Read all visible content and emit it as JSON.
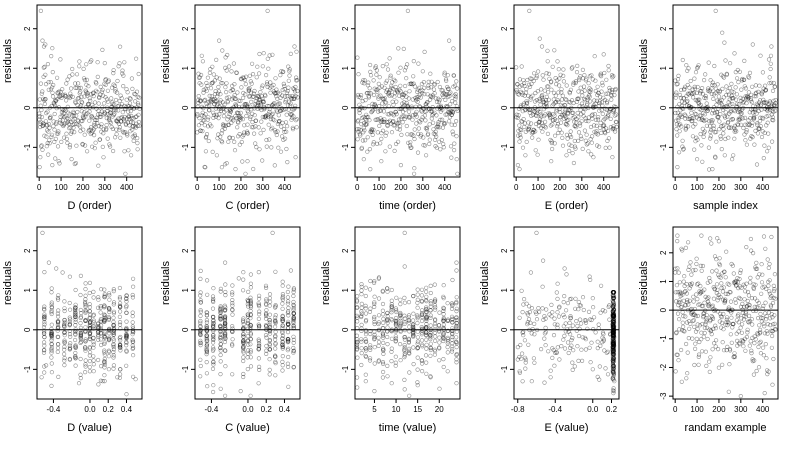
{
  "figure": {
    "background": "#ffffff",
    "point_color": "#000000",
    "point_opacity": 0.45,
    "ylabel": "residuals"
  },
  "chart_data": [
    {
      "id": "d-order",
      "type": "scatter",
      "xlabel": "D (order)",
      "xlim": [
        -10,
        470
      ],
      "ylim": [
        -1.75,
        2.6
      ],
      "xticks": [
        0,
        100,
        200,
        300,
        400
      ],
      "xticklabels": [
        "0",
        "100",
        "200",
        "300",
        "400"
      ],
      "yticks": [
        -1,
        0,
        1,
        2
      ],
      "yticklabels": [
        "-1",
        "0",
        "1",
        "2"
      ],
      "hline": 0,
      "gen": "order",
      "seed": 11,
      "n": 460,
      "points": [
        [
          8,
          2.45
        ],
        [
          15,
          1.7
        ],
        [
          22,
          1.55
        ],
        [
          28,
          1.6
        ],
        [
          5,
          -1.25
        ],
        [
          2,
          -1.5
        ],
        [
          60,
          -1.45
        ],
        [
          140,
          -1.0
        ],
        [
          215,
          1.1
        ],
        [
          238,
          1.2
        ],
        [
          340,
          0.95
        ],
        [
          390,
          -1.1
        ],
        [
          420,
          -1.2
        ],
        [
          450,
          -1.05
        ]
      ]
    },
    {
      "id": "c-order",
      "type": "scatter",
      "xlabel": "C (order)",
      "xlim": [
        -10,
        470
      ],
      "ylim": [
        -1.75,
        2.6
      ],
      "xticks": [
        0,
        100,
        200,
        300,
        400
      ],
      "xticklabels": [
        "0",
        "100",
        "200",
        "300",
        "400"
      ],
      "yticks": [
        -1,
        0,
        1,
        2
      ],
      "yticklabels": [
        "-1",
        "0",
        "1",
        "2"
      ],
      "hline": 0,
      "gen": "order",
      "seed": 23,
      "n": 460,
      "points": [
        [
          322,
          2.45
        ],
        [
          100,
          1.7
        ],
        [
          115,
          1.45
        ],
        [
          300,
          1.05
        ],
        [
          445,
          1.55
        ],
        [
          40,
          -1.1
        ],
        [
          90,
          -1.2
        ],
        [
          135,
          -1.4
        ],
        [
          175,
          -1.55
        ],
        [
          230,
          -1.35
        ],
        [
          285,
          -1.05
        ],
        [
          450,
          -1.25
        ]
      ]
    },
    {
      "id": "time-order",
      "type": "scatter",
      "xlabel": "time (order)",
      "xlim": [
        -10,
        470
      ],
      "ylim": [
        -1.75,
        2.6
      ],
      "xticks": [
        0,
        100,
        200,
        300,
        400
      ],
      "xticklabels": [
        "0",
        "100",
        "200",
        "300",
        "400"
      ],
      "yticks": [
        -1,
        0,
        1,
        2
      ],
      "yticklabels": [
        "-1",
        "0",
        "1",
        "2"
      ],
      "hline": 0,
      "gen": "order",
      "seed": 37,
      "n": 460,
      "points": [
        [
          232,
          2.45
        ],
        [
          148,
          1.25
        ],
        [
          135,
          1.1
        ],
        [
          420,
          1.7
        ],
        [
          440,
          1.5
        ],
        [
          6,
          0.85
        ],
        [
          30,
          -1.3
        ],
        [
          60,
          -1.55
        ],
        [
          110,
          -1.35
        ],
        [
          200,
          -1.45
        ],
        [
          315,
          -1.2
        ],
        [
          380,
          -1.05
        ],
        [
          455,
          -1.3
        ]
      ]
    },
    {
      "id": "e-order",
      "type": "scatter",
      "xlabel": "E (order)",
      "xlim": [
        -10,
        470
      ],
      "ylim": [
        -1.75,
        2.6
      ],
      "xticks": [
        0,
        100,
        200,
        300,
        400
      ],
      "xticklabels": [
        "0",
        "100",
        "200",
        "300",
        "400"
      ],
      "yticks": [
        -1,
        0,
        1,
        2
      ],
      "yticklabels": [
        "-1",
        "0",
        "1",
        "2"
      ],
      "hline": 0,
      "gen": "order",
      "seed": 41,
      "n": 460,
      "points": [
        [
          60,
          2.45
        ],
        [
          108,
          1.75
        ],
        [
          118,
          1.55
        ],
        [
          20,
          -0.75
        ],
        [
          8,
          -1.45
        ],
        [
          15,
          -1.55
        ],
        [
          160,
          -1.35
        ],
        [
          230,
          -1.2
        ],
        [
          330,
          -1.1
        ],
        [
          440,
          -1.25
        ],
        [
          400,
          1.35
        ]
      ]
    },
    {
      "id": "sample-index",
      "type": "scatter",
      "xlabel": "sample index",
      "xlim": [
        -10,
        470
      ],
      "ylim": [
        -1.75,
        2.6
      ],
      "xticks": [
        0,
        100,
        200,
        300,
        400
      ],
      "xticklabels": [
        "0",
        "100",
        "200",
        "300",
        "400"
      ],
      "yticks": [
        -1,
        0,
        1,
        2
      ],
      "yticklabels": [
        "-1",
        "0",
        "1",
        "2"
      ],
      "hline": 0,
      "gen": "order",
      "seed": 53,
      "n": 460,
      "points": [
        [
          185,
          2.45
        ],
        [
          215,
          1.9
        ],
        [
          225,
          1.65
        ],
        [
          355,
          1.6
        ],
        [
          440,
          1.55
        ],
        [
          10,
          -1.5
        ],
        [
          100,
          -1.3
        ],
        [
          120,
          -0.95
        ],
        [
          170,
          -1.55
        ],
        [
          260,
          -1.3
        ],
        [
          420,
          -1.1
        ]
      ]
    },
    {
      "id": "d-value",
      "type": "scatter",
      "xlabel": "D (value)",
      "xlim": [
        -0.58,
        0.57
      ],
      "ylim": [
        -1.75,
        2.6
      ],
      "xticks": [
        -0.4,
        0.0,
        0.2,
        0.4
      ],
      "xticklabels": [
        "-0.4",
        "0.0",
        "0.2",
        "0.4"
      ],
      "yticks": [
        -1,
        0,
        1,
        2
      ],
      "yticklabels": [
        "-1",
        "0",
        "1",
        "2"
      ],
      "hline": 0,
      "gen": "columns",
      "columns": [
        -0.5,
        -0.42,
        -0.35,
        -0.28,
        -0.22,
        -0.16,
        -0.1,
        -0.05,
        0.0,
        0.04,
        0.09,
        0.12,
        0.16,
        0.21,
        0.26,
        0.33,
        0.4,
        0.47
      ],
      "seed": 61,
      "n": 460,
      "points": [
        [
          -0.52,
          2.45
        ],
        [
          -0.45,
          1.7
        ],
        [
          -0.37,
          1.55
        ],
        [
          -0.3,
          1.45
        ],
        [
          -0.53,
          -1.2
        ],
        [
          -0.48,
          -0.9
        ],
        [
          0.14,
          -1.3
        ],
        [
          0.3,
          -1.2
        ],
        [
          0.5,
          -1.25
        ],
        [
          -0.12,
          -1.35
        ]
      ]
    },
    {
      "id": "c-value",
      "type": "scatter",
      "xlabel": "C (value)",
      "xlim": [
        -0.58,
        0.57
      ],
      "ylim": [
        -1.75,
        2.6
      ],
      "xticks": [
        -0.4,
        0.0,
        0.2,
        0.4
      ],
      "xticklabels": [
        "-0.4",
        "0.0",
        "0.2",
        "0.4"
      ],
      "yticks": [
        -1,
        0,
        1,
        2
      ],
      "yticklabels": [
        "-1",
        "0",
        "1",
        "2"
      ],
      "hline": 0,
      "gen": "columns",
      "columns": [
        -0.52,
        -0.45,
        -0.38,
        -0.3,
        -0.25,
        -0.17,
        -0.05,
        0.0,
        0.03,
        0.12,
        0.2,
        0.24,
        0.3,
        0.38,
        0.44,
        0.5
      ],
      "seed": 67,
      "n": 460,
      "points": [
        [
          0.27,
          2.45
        ],
        [
          -0.25,
          1.7
        ],
        [
          -0.1,
          1.3
        ],
        [
          0.47,
          1.5
        ],
        [
          -0.45,
          -1.1
        ],
        [
          -0.38,
          -1.4
        ],
        [
          -0.08,
          -1.55
        ],
        [
          0.3,
          -1.15
        ],
        [
          0.5,
          -0.95
        ]
      ]
    },
    {
      "id": "time-value",
      "type": "scatter",
      "xlabel": "time (value)",
      "xlim": [
        0.5,
        24.8
      ],
      "ylim": [
        -1.75,
        2.6
      ],
      "xticks": [
        5,
        10,
        15,
        20
      ],
      "xticklabels": [
        "5",
        "10",
        "15",
        "20"
      ],
      "yticks": [
        -1,
        0,
        1,
        2
      ],
      "yticklabels": [
        "-1",
        "0",
        "1",
        "2"
      ],
      "hline": 0,
      "gen": "columns",
      "columns": [
        1,
        2,
        3,
        4,
        5,
        6,
        7,
        8,
        9,
        10,
        11,
        12,
        13,
        14,
        15,
        16,
        17,
        18,
        19,
        20,
        21,
        22,
        23,
        24
      ],
      "seed": 71,
      "n": 460,
      "points": [
        [
          12,
          2.45
        ],
        [
          12,
          1.6
        ],
        [
          1,
          0.85
        ],
        [
          24,
          1.7
        ],
        [
          24,
          1.5
        ],
        [
          3,
          -1.3
        ],
        [
          5,
          -1.55
        ],
        [
          9,
          -1.35
        ],
        [
          15,
          -1.4
        ],
        [
          18,
          -1.2
        ],
        [
          24,
          -1.35
        ]
      ]
    },
    {
      "id": "e-value",
      "type": "scatter",
      "xlabel": "E (value)",
      "xlim": [
        -0.84,
        0.28
      ],
      "ylim": [
        -1.75,
        2.6
      ],
      "xticks": [
        -0.8,
        -0.4,
        0.0,
        0.2
      ],
      "xticklabels": [
        "-0.8",
        "-0.4",
        "0.0",
        "0.2"
      ],
      "yticks": [
        -1,
        0,
        1,
        2
      ],
      "yticklabels": [
        "-1",
        "0",
        "1",
        "2"
      ],
      "hline": 0,
      "gen": "evalue",
      "seed": 79,
      "n": 460,
      "points": [
        [
          -0.6,
          2.45
        ],
        [
          -0.53,
          1.75
        ],
        [
          -0.66,
          1.45
        ],
        [
          -0.3,
          1.55
        ],
        [
          -0.28,
          1.4
        ],
        [
          -0.8,
          -0.75
        ],
        [
          -0.78,
          -1.05
        ],
        [
          -0.65,
          -1.3
        ],
        [
          -0.45,
          -1.2
        ],
        [
          0.22,
          -1.6
        ],
        [
          0.23,
          -1.3
        ],
        [
          0.0,
          -1.0
        ]
      ]
    },
    {
      "id": "random-example",
      "type": "scatter",
      "xlabel": "randam example",
      "xlim": [
        -10,
        470
      ],
      "ylim": [
        -3.1,
        2.9
      ],
      "xticks": [
        0,
        100,
        200,
        300,
        400
      ],
      "xticklabels": [
        "0",
        "100",
        "200",
        "300",
        "400"
      ],
      "yticks": [
        -3,
        -2,
        -1,
        0,
        1,
        2
      ],
      "yticklabels": [
        "-3",
        "-2",
        "-1",
        "0",
        "1",
        "2"
      ],
      "hline": 0,
      "gen": "order",
      "spread": 1.0,
      "seed": 97,
      "n": 460,
      "points": [
        [
          10,
          2.6
        ],
        [
          120,
          2.6
        ],
        [
          160,
          2.5
        ],
        [
          200,
          2.4
        ],
        [
          440,
          2.55
        ],
        [
          55,
          -2.2
        ],
        [
          30,
          -2.5
        ],
        [
          245,
          -2.85
        ],
        [
          300,
          -3.0
        ],
        [
          445,
          -2.6
        ],
        [
          360,
          -2.25
        ]
      ]
    }
  ]
}
